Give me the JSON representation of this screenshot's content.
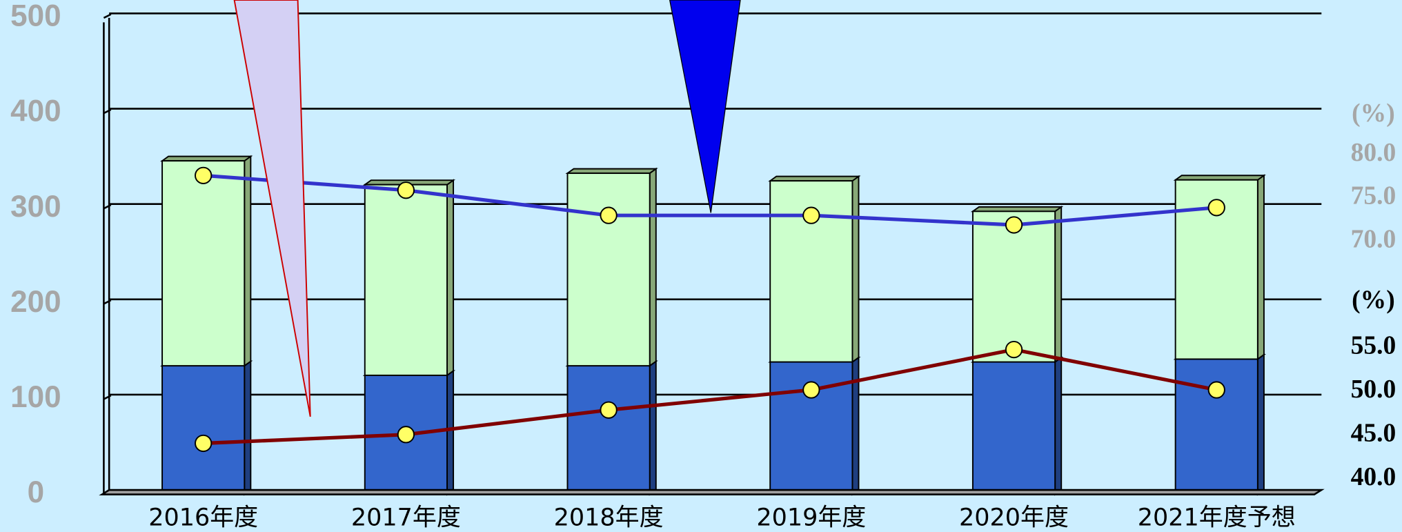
{
  "chart_data": {
    "type": "bar",
    "categories": [
      "2016年度",
      "2017年度",
      "2018年度",
      "2019年度",
      "2020年度",
      "2021年度予想"
    ],
    "series": [
      {
        "color": "#3366cc",
        "values": [
          135,
          125,
          135,
          139,
          139,
          142
        ]
      },
      {
        "color": "#ccffcc",
        "values": [
          215,
          200,
          202,
          190,
          158,
          188
        ]
      },
      {
        "type": "line",
        "axis": "y2",
        "color": "#3333cc",
        "values": [
          77.6,
          75.9,
          73.0,
          73.0,
          71.9,
          73.9
        ]
      },
      {
        "type": "line",
        "axis": "y3",
        "color": "#800000",
        "values": [
          44.1,
          45.1,
          47.9,
          50.2,
          54.8,
          50.2
        ]
      }
    ],
    "ylim": [
      0,
      500
    ],
    "yticks": [
      0,
      100,
      200,
      300,
      400,
      500
    ],
    "grid": true,
    "y2label": "(%)",
    "y2lim": [
      70,
      80
    ],
    "y2ticks": [
      {
        "value": 80,
        "label": "80.0"
      },
      {
        "value": 75,
        "label": "75.0"
      },
      {
        "value": 70,
        "label": "70.0"
      }
    ],
    "y3label": "(%)",
    "y3lim": [
      40,
      55
    ],
    "y3ticks": [
      {
        "value": 55,
        "label": "55.0"
      },
      {
        "value": 50,
        "label": "50.0"
      },
      {
        "value": 45,
        "label": "45.0"
      },
      {
        "value": 40,
        "label": "40.0"
      }
    ]
  }
}
